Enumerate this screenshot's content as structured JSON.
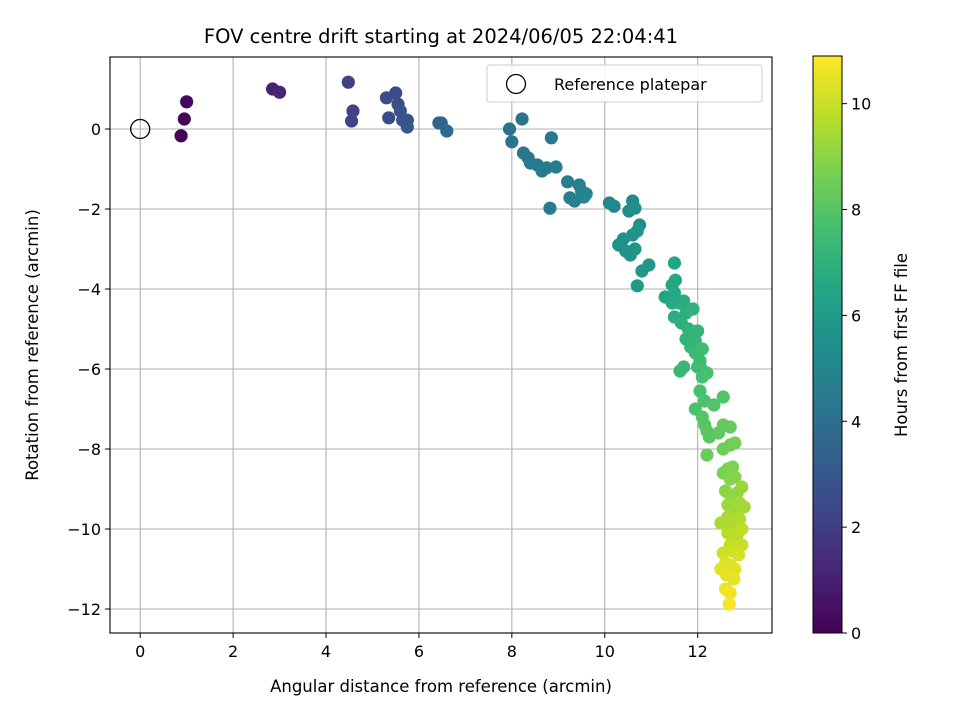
{
  "chart_data": {
    "type": "scatter",
    "title": "FOV centre drift starting at 2024/06/05 22:04:41",
    "xlabel": "Angular distance from reference (arcmin)",
    "ylabel": "Rotation from reference (arcmin)",
    "colorbar_label": "Hours from first FF file",
    "colormap": "viridis",
    "xlim": [
      -0.65,
      13.6
    ],
    "ylim": [
      -12.6,
      1.8
    ],
    "clim": [
      0,
      10.9
    ],
    "grid": true,
    "legend_position": "top-right",
    "xticks": [
      0,
      2,
      4,
      6,
      8,
      10,
      12
    ],
    "xtick_labels": [
      "0",
      "2",
      "4",
      "6",
      "8",
      "10",
      "12"
    ],
    "yticks": [
      0,
      -2,
      -4,
      -6,
      -8,
      -10,
      -12
    ],
    "ytick_labels": [
      "0",
      "−2",
      "−4",
      "−6",
      "−8",
      "−10",
      "−12"
    ],
    "cticks": [
      0,
      2,
      4,
      6,
      8,
      10
    ],
    "ctick_labels": [
      "0",
      "2",
      "4",
      "6",
      "8",
      "10"
    ],
    "reference": {
      "label": "Reference platepar",
      "x": 0,
      "y": 0
    },
    "points": [
      {
        "x": 0.88,
        "y": -0.17,
        "c": 0.1
      },
      {
        "x": 0.95,
        "y": 0.25,
        "c": 0.2
      },
      {
        "x": 1.0,
        "y": 0.68,
        "c": 0.3
      },
      {
        "x": 2.85,
        "y": 1.0,
        "c": 1.1
      },
      {
        "x": 3.0,
        "y": 0.92,
        "c": 1.2
      },
      {
        "x": 4.48,
        "y": 1.17,
        "c": 2.1
      },
      {
        "x": 4.58,
        "y": 0.45,
        "c": 2.2
      },
      {
        "x": 4.55,
        "y": 0.2,
        "c": 2.2
      },
      {
        "x": 5.3,
        "y": 0.78,
        "c": 2.5
      },
      {
        "x": 5.35,
        "y": 0.28,
        "c": 2.6
      },
      {
        "x": 5.5,
        "y": 0.9,
        "c": 2.6
      },
      {
        "x": 5.55,
        "y": 0.62,
        "c": 2.7
      },
      {
        "x": 5.6,
        "y": 0.45,
        "c": 2.8
      },
      {
        "x": 5.65,
        "y": 0.22,
        "c": 2.8
      },
      {
        "x": 5.75,
        "y": 0.22,
        "c": 2.9
      },
      {
        "x": 5.75,
        "y": 0.05,
        "c": 3.0
      },
      {
        "x": 6.43,
        "y": 0.15,
        "c": 3.4
      },
      {
        "x": 6.48,
        "y": 0.15,
        "c": 3.5
      },
      {
        "x": 6.6,
        "y": -0.05,
        "c": 3.6
      },
      {
        "x": 7.95,
        "y": 0.0,
        "c": 4.1
      },
      {
        "x": 8.0,
        "y": -0.32,
        "c": 4.1
      },
      {
        "x": 8.22,
        "y": 0.25,
        "c": 4.2
      },
      {
        "x": 8.25,
        "y": -0.6,
        "c": 4.3
      },
      {
        "x": 8.35,
        "y": -0.72,
        "c": 4.3
      },
      {
        "x": 8.4,
        "y": -0.85,
        "c": 4.4
      },
      {
        "x": 8.55,
        "y": -0.9,
        "c": 4.4
      },
      {
        "x": 8.65,
        "y": -1.05,
        "c": 4.5
      },
      {
        "x": 8.75,
        "y": -0.97,
        "c": 4.5
      },
      {
        "x": 8.85,
        "y": -0.22,
        "c": 4.4
      },
      {
        "x": 8.95,
        "y": -0.95,
        "c": 4.6
      },
      {
        "x": 8.82,
        "y": -1.98,
        "c": 4.6
      },
      {
        "x": 9.2,
        "y": -1.32,
        "c": 4.7
      },
      {
        "x": 9.25,
        "y": -1.72,
        "c": 4.7
      },
      {
        "x": 9.35,
        "y": -1.8,
        "c": 4.8
      },
      {
        "x": 9.45,
        "y": -1.4,
        "c": 4.8
      },
      {
        "x": 9.5,
        "y": -1.55,
        "c": 4.9
      },
      {
        "x": 9.55,
        "y": -1.7,
        "c": 4.9
      },
      {
        "x": 9.6,
        "y": -1.62,
        "c": 4.9
      },
      {
        "x": 10.1,
        "y": -1.85,
        "c": 5.0
      },
      {
        "x": 10.2,
        "y": -1.93,
        "c": 5.1
      },
      {
        "x": 10.52,
        "y": -2.05,
        "c": 5.2
      },
      {
        "x": 10.6,
        "y": -1.8,
        "c": 5.2
      },
      {
        "x": 10.65,
        "y": -1.98,
        "c": 5.3
      },
      {
        "x": 10.75,
        "y": -2.4,
        "c": 5.4
      },
      {
        "x": 10.3,
        "y": -2.9,
        "c": 5.5
      },
      {
        "x": 10.4,
        "y": -2.75,
        "c": 5.5
      },
      {
        "x": 10.45,
        "y": -3.05,
        "c": 5.6
      },
      {
        "x": 10.55,
        "y": -3.15,
        "c": 5.6
      },
      {
        "x": 10.6,
        "y": -2.65,
        "c": 5.6
      },
      {
        "x": 10.7,
        "y": -2.55,
        "c": 5.7
      },
      {
        "x": 10.65,
        "y": -3.0,
        "c": 5.7
      },
      {
        "x": 10.8,
        "y": -3.55,
        "c": 5.8
      },
      {
        "x": 10.95,
        "y": -3.4,
        "c": 5.8
      },
      {
        "x": 10.7,
        "y": -3.92,
        "c": 5.9
      },
      {
        "x": 11.3,
        "y": -4.2,
        "c": 6.4
      },
      {
        "x": 11.45,
        "y": -3.9,
        "c": 6.5
      },
      {
        "x": 11.5,
        "y": -3.35,
        "c": 6.5
      },
      {
        "x": 11.5,
        "y": -4.1,
        "c": 6.6
      },
      {
        "x": 11.52,
        "y": -3.78,
        "c": 6.6
      },
      {
        "x": 11.45,
        "y": -4.35,
        "c": 6.7
      },
      {
        "x": 11.6,
        "y": -4.35,
        "c": 6.7
      },
      {
        "x": 11.5,
        "y": -4.7,
        "c": 6.8
      },
      {
        "x": 11.7,
        "y": -4.3,
        "c": 6.8
      },
      {
        "x": 11.65,
        "y": -4.85,
        "c": 6.9
      },
      {
        "x": 11.75,
        "y": -4.6,
        "c": 6.9
      },
      {
        "x": 11.8,
        "y": -5.0,
        "c": 7.0
      },
      {
        "x": 11.9,
        "y": -4.5,
        "c": 7.0
      },
      {
        "x": 11.75,
        "y": -5.25,
        "c": 7.1
      },
      {
        "x": 11.85,
        "y": -5.1,
        "c": 7.1
      },
      {
        "x": 11.95,
        "y": -5.3,
        "c": 7.2
      },
      {
        "x": 11.85,
        "y": -5.45,
        "c": 7.2
      },
      {
        "x": 12.0,
        "y": -5.05,
        "c": 7.2
      },
      {
        "x": 11.7,
        "y": -5.95,
        "c": 7.3
      },
      {
        "x": 11.62,
        "y": -6.05,
        "c": 7.3
      },
      {
        "x": 11.95,
        "y": -5.6,
        "c": 7.4
      },
      {
        "x": 12.05,
        "y": -5.8,
        "c": 7.4
      },
      {
        "x": 12.1,
        "y": -5.5,
        "c": 7.5
      },
      {
        "x": 12.0,
        "y": -5.95,
        "c": 7.5
      },
      {
        "x": 12.08,
        "y": -6.0,
        "c": 7.6
      },
      {
        "x": 12.1,
        "y": -6.2,
        "c": 7.6
      },
      {
        "x": 12.2,
        "y": -6.1,
        "c": 7.7
      },
      {
        "x": 12.05,
        "y": -6.55,
        "c": 7.7
      },
      {
        "x": 11.95,
        "y": -7.0,
        "c": 7.8
      },
      {
        "x": 12.15,
        "y": -6.8,
        "c": 7.8
      },
      {
        "x": 12.35,
        "y": -6.9,
        "c": 7.9
      },
      {
        "x": 12.55,
        "y": -6.7,
        "c": 7.9
      },
      {
        "x": 12.1,
        "y": -7.2,
        "c": 8.0
      },
      {
        "x": 12.15,
        "y": -7.4,
        "c": 8.0
      },
      {
        "x": 12.2,
        "y": -7.55,
        "c": 8.1
      },
      {
        "x": 12.25,
        "y": -7.7,
        "c": 8.1
      },
      {
        "x": 12.45,
        "y": -7.6,
        "c": 8.2
      },
      {
        "x": 12.55,
        "y": -7.4,
        "c": 8.3
      },
      {
        "x": 12.7,
        "y": -7.45,
        "c": 8.3
      },
      {
        "x": 12.2,
        "y": -8.15,
        "c": 8.4
      },
      {
        "x": 12.55,
        "y": -8.0,
        "c": 8.5
      },
      {
        "x": 12.7,
        "y": -7.9,
        "c": 8.5
      },
      {
        "x": 12.8,
        "y": -7.85,
        "c": 8.6
      },
      {
        "x": 12.55,
        "y": -8.6,
        "c": 8.7
      },
      {
        "x": 12.65,
        "y": -8.5,
        "c": 8.7
      },
      {
        "x": 12.75,
        "y": -8.45,
        "c": 8.8
      },
      {
        "x": 12.7,
        "y": -8.75,
        "c": 8.9
      },
      {
        "x": 12.8,
        "y": -8.7,
        "c": 8.9
      },
      {
        "x": 12.6,
        "y": -9.05,
        "c": 9.0
      },
      {
        "x": 12.72,
        "y": -9.2,
        "c": 9.1
      },
      {
        "x": 12.85,
        "y": -9.1,
        "c": 9.1
      },
      {
        "x": 12.95,
        "y": -8.95,
        "c": 9.2
      },
      {
        "x": 12.65,
        "y": -9.4,
        "c": 9.3
      },
      {
        "x": 12.8,
        "y": -9.5,
        "c": 9.3
      },
      {
        "x": 12.9,
        "y": -9.35,
        "c": 9.4
      },
      {
        "x": 13.0,
        "y": -9.45,
        "c": 9.4
      },
      {
        "x": 12.65,
        "y": -9.7,
        "c": 9.5
      },
      {
        "x": 12.5,
        "y": -9.85,
        "c": 9.5
      },
      {
        "x": 12.75,
        "y": -9.9,
        "c": 9.6
      },
      {
        "x": 12.9,
        "y": -9.75,
        "c": 9.6
      },
      {
        "x": 12.65,
        "y": -10.1,
        "c": 9.7
      },
      {
        "x": 12.85,
        "y": -10.15,
        "c": 9.8
      },
      {
        "x": 12.95,
        "y": -10.0,
        "c": 9.8
      },
      {
        "x": 12.7,
        "y": -10.4,
        "c": 9.9
      },
      {
        "x": 12.95,
        "y": -10.4,
        "c": 10.0
      },
      {
        "x": 12.55,
        "y": -10.6,
        "c": 10.1
      },
      {
        "x": 12.75,
        "y": -10.55,
        "c": 10.1
      },
      {
        "x": 12.88,
        "y": -10.65,
        "c": 10.2
      },
      {
        "x": 12.6,
        "y": -10.85,
        "c": 10.3
      },
      {
        "x": 12.7,
        "y": -10.9,
        "c": 10.3
      },
      {
        "x": 12.5,
        "y": -11.0,
        "c": 10.4
      },
      {
        "x": 12.8,
        "y": -11.0,
        "c": 10.4
      },
      {
        "x": 12.62,
        "y": -11.15,
        "c": 10.5
      },
      {
        "x": 12.78,
        "y": -11.25,
        "c": 10.5
      },
      {
        "x": 12.6,
        "y": -11.5,
        "c": 10.6
      },
      {
        "x": 12.7,
        "y": -11.6,
        "c": 10.7
      },
      {
        "x": 12.68,
        "y": -11.88,
        "c": 10.8
      }
    ]
  }
}
